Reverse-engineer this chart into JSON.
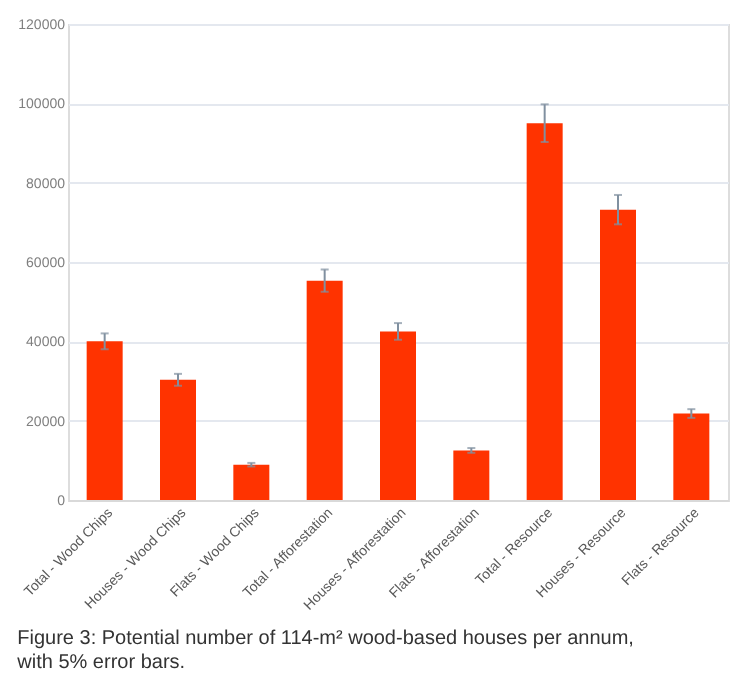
{
  "chart_data": {
    "type": "bar",
    "categories": [
      "Total - Wood Chips",
      "Houses - Wood Chips",
      "Flats - Wood Chips",
      "Total - Afforestation",
      "Houses - Afforestation",
      "Flats - Afforestation",
      "Total - Resource",
      "Houses - Resource",
      "Flats - Resource"
    ],
    "values": [
      40000,
      30300,
      8900,
      55300,
      42500,
      12500,
      95000,
      73200,
      21800
    ],
    "errors": [
      2000,
      1500,
      450,
      2800,
      2100,
      600,
      4750,
      3700,
      1100
    ],
    "color": "#ff3300",
    "ylim": [
      0,
      120000
    ],
    "yticks": [
      0,
      20000,
      40000,
      60000,
      80000,
      100000,
      120000
    ],
    "grid": "y",
    "annotations": [
      "Figure 3:    Potential number of 114-m² wood-based houses per annum, with 5% error bars."
    ]
  }
}
